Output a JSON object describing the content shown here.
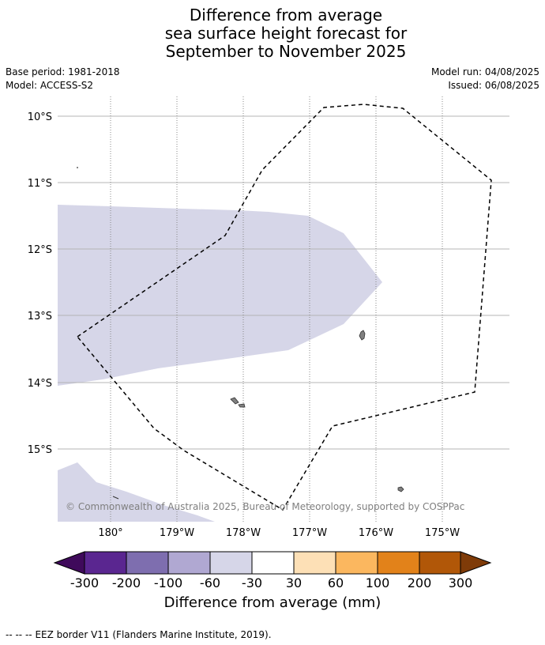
{
  "title": {
    "line1": "Difference from average",
    "line2": "sea surface height forecast for",
    "line3": "September to November 2025"
  },
  "meta": {
    "base_period": "Base period: 1981-2018",
    "model": "Model: ACCESS-S2",
    "model_run": "Model run: 04/08/2025",
    "issued": "Issued: 06/08/2025"
  },
  "map": {
    "lat_labels": [
      "10°S",
      "11°S",
      "12°S",
      "13°S",
      "14°S",
      "15°S"
    ],
    "lon_labels": [
      "180°",
      "179°W",
      "178°W",
      "177°W",
      "176°W",
      "175°W"
    ],
    "copyright": "© Commonwealth of Australia 2025, Bureau of Meteorology, supported by COSPPac",
    "anomaly_fill_color": "#d6d6e8",
    "land_color": "#808080",
    "eez_line_style": "dashed"
  },
  "colorbar": {
    "title": "Difference from average (mm)",
    "tick_labels": [
      "-300",
      "-200",
      "-100",
      "-60",
      "-30",
      "30",
      "60",
      "100",
      "200",
      "300"
    ],
    "colors": [
      "#3f0a5b",
      "#5a2690",
      "#7e6eaf",
      "#b0a8d2",
      "#d6d6e8",
      "#ffffff",
      "#fde0b6",
      "#fbb75f",
      "#e2821a",
      "#b15708",
      "#7f3b08"
    ]
  },
  "footer": {
    "legend_symbol": "-- -- --",
    "legend_text": "EEZ border V11 (Flanders Marine Institute, 2019)."
  }
}
